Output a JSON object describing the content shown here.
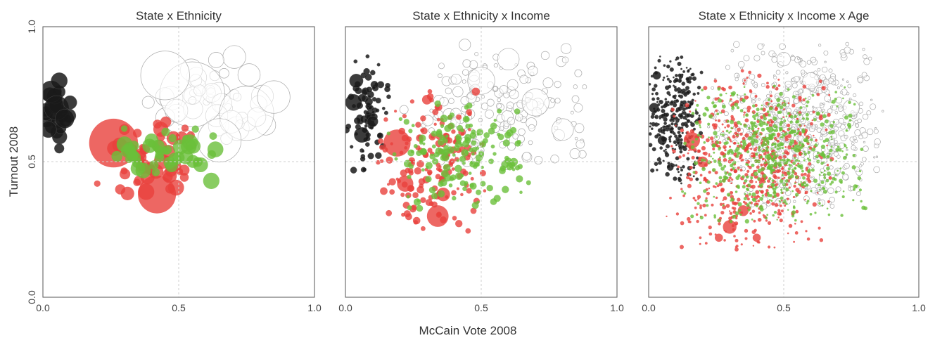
{
  "chart_data": [
    {
      "type": "scatter",
      "title": "State x Ethnicity",
      "ylabel": "Turnout 2008",
      "xlim": [
        0.0,
        1.0
      ],
      "ylim": [
        0.0,
        1.0
      ],
      "x_ticks": [
        "0.0",
        "0.5",
        "1.0"
      ],
      "y_ticks": [
        "0.0",
        "0.5",
        "1.0"
      ],
      "grid": "dashed reference lines at 0.5",
      "series": [
        {
          "color": "#1a1a1a",
          "cluster": {
            "x": [
              0.0,
              0.1
            ],
            "y": [
              0.58,
              0.82
            ]
          },
          "points": [
            [
              0.03,
              0.76,
              0.04
            ],
            [
              0.05,
              0.7,
              0.045
            ],
            [
              0.08,
              0.66,
              0.035
            ],
            [
              0.02,
              0.62,
              0.03
            ],
            [
              0.06,
              0.8,
              0.03
            ],
            [
              0.1,
              0.72,
              0.025
            ],
            [
              0.06,
              0.55,
              0.018
            ]
          ]
        },
        {
          "color": "#e8413c",
          "cluster": {
            "x": [
              0.2,
              0.6
            ],
            "y": [
              0.35,
              0.68
            ]
          },
          "points": [
            [
              0.26,
              0.57,
              0.09
            ],
            [
              0.42,
              0.38,
              0.07
            ],
            [
              0.38,
              0.39,
              0.03
            ],
            [
              0.3,
              0.62,
              0.02
            ],
            [
              0.52,
              0.47,
              0.02
            ],
            [
              0.2,
              0.42,
              0.012
            ]
          ]
        },
        {
          "color": "#6abf3a",
          "cluster": {
            "x": [
              0.22,
              0.66
            ],
            "y": [
              0.42,
              0.64
            ]
          },
          "points": [
            [
              0.62,
              0.43,
              0.03
            ],
            [
              0.4,
              0.58,
              0.025
            ],
            [
              0.33,
              0.52,
              0.02
            ],
            [
              0.57,
              0.5,
              0.018
            ]
          ]
        },
        {
          "color": "#ffffff",
          "stroke": "#aaaaaa",
          "cluster": {
            "x": [
              0.3,
              0.95
            ],
            "y": [
              0.55,
              0.9
            ]
          },
          "points": [
            [
              0.55,
              0.75,
              0.12
            ],
            [
              0.75,
              0.68,
              0.1
            ],
            [
              0.45,
              0.82,
              0.09
            ],
            [
              0.65,
              0.58,
              0.08
            ],
            [
              0.85,
              0.74,
              0.06
            ]
          ]
        }
      ]
    },
    {
      "type": "scatter",
      "title": "State x Ethnicity x Income",
      "xlim": [
        0.0,
        1.0
      ],
      "ylim": [
        0.0,
        1.0
      ],
      "x_ticks": [
        "0.0",
        "0.5",
        "1.0"
      ],
      "grid": "dashed reference lines at 0.5",
      "series": [
        {
          "color": "#1a1a1a",
          "cluster": {
            "x": [
              0.0,
              0.17
            ],
            "y": [
              0.45,
              0.9
            ]
          },
          "points": [
            [
              0.03,
              0.72,
              0.03
            ],
            [
              0.06,
              0.6,
              0.028
            ],
            [
              0.04,
              0.8,
              0.025
            ],
            [
              0.1,
              0.65,
              0.02
            ],
            [
              0.03,
              0.47,
              0.012
            ]
          ]
        },
        {
          "color": "#e8413c",
          "cluster": {
            "x": [
              0.1,
              0.55
            ],
            "y": [
              0.22,
              0.78
            ]
          },
          "points": [
            [
              0.19,
              0.57,
              0.05
            ],
            [
              0.34,
              0.3,
              0.04
            ],
            [
              0.22,
              0.42,
              0.03
            ],
            [
              0.3,
              0.73,
              0.018
            ],
            [
              0.48,
              0.76,
              0.015
            ],
            [
              0.36,
              0.38,
              0.025
            ]
          ]
        },
        {
          "color": "#6abf3a",
          "cluster": {
            "x": [
              0.15,
              0.7
            ],
            "y": [
              0.3,
              0.74
            ]
          },
          "points": [
            [
              0.62,
              0.5,
              0.015
            ],
            [
              0.45,
              0.58,
              0.012
            ]
          ]
        },
        {
          "color": "#ffffff",
          "stroke": "#aaaaaa",
          "cluster": {
            "x": [
              0.2,
              0.92
            ],
            "y": [
              0.45,
              0.95
            ]
          },
          "points": [
            [
              0.5,
              0.8,
              0.05
            ],
            [
              0.7,
              0.72,
              0.05
            ],
            [
              0.6,
              0.88,
              0.04
            ],
            [
              0.8,
              0.62,
              0.04
            ]
          ]
        }
      ]
    },
    {
      "type": "scatter",
      "title": "State x Ethnicity x Income x Age",
      "xlim": [
        0.0,
        1.0
      ],
      "ylim": [
        0.0,
        1.0
      ],
      "x_ticks": [
        "0.0",
        "0.5",
        "1.0"
      ],
      "grid": "dashed reference lines at 0.5",
      "series": [
        {
          "color": "#1a1a1a",
          "cluster": {
            "x": [
              0.0,
              0.2
            ],
            "y": [
              0.4,
              0.92
            ]
          },
          "points": [
            [
              0.02,
              0.7,
              0.018
            ],
            [
              0.05,
              0.58,
              0.016
            ],
            [
              0.03,
              0.82,
              0.015
            ],
            [
              0.08,
              0.48,
              0.012
            ]
          ]
        },
        {
          "color": "#e8413c",
          "cluster": {
            "x": [
              0.05,
              0.7
            ],
            "y": [
              0.15,
              0.85
            ]
          },
          "points": [
            [
              0.16,
              0.58,
              0.03
            ],
            [
              0.3,
              0.26,
              0.025
            ],
            [
              0.2,
              0.5,
              0.02
            ],
            [
              0.35,
              0.32,
              0.02
            ],
            [
              0.4,
              0.22,
              0.015
            ],
            [
              0.26,
              0.22,
              0.015
            ]
          ]
        },
        {
          "color": "#6abf3a",
          "cluster": {
            "x": [
              0.1,
              0.82
            ],
            "y": [
              0.25,
              0.8
            ]
          },
          "points": [
            [
              0.55,
              0.55,
              0.015
            ],
            [
              0.45,
              0.62,
              0.012
            ]
          ]
        },
        {
          "color": "#ffffff",
          "stroke": "#aaaaaa",
          "cluster": {
            "x": [
              0.2,
              0.92
            ],
            "y": [
              0.3,
              0.95
            ]
          },
          "points": [
            [
              0.6,
              0.8,
              0.03
            ],
            [
              0.75,
              0.7,
              0.03
            ],
            [
              0.5,
              0.88,
              0.025
            ]
          ]
        }
      ]
    }
  ],
  "shared_xlabel": "McCain Vote 2008"
}
